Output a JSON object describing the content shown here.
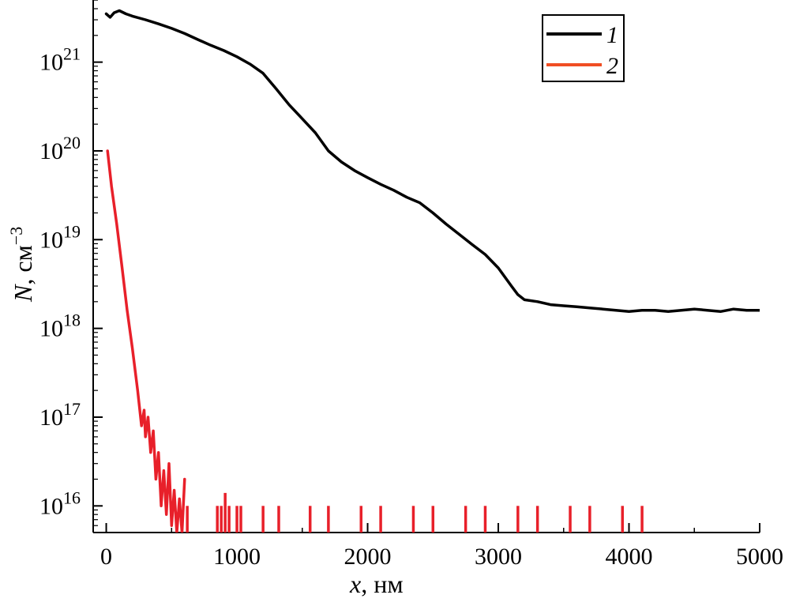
{
  "chart_data": {
    "type": "line",
    "xlabel_var": "x",
    "xlabel_unit": ", нм",
    "ylabel_var": "N",
    "ylabel_unit": ", см",
    "ylabel_exp": "−3",
    "xlim": [
      -100,
      5000
    ],
    "ylim_log10": [
      15.7,
      21.7
    ],
    "y_scale": "log",
    "grid": false,
    "legend_position": "top-right",
    "x_ticks": [
      0,
      1000,
      2000,
      3000,
      4000,
      5000
    ],
    "x_tick_labels": [
      "0",
      "1000",
      "2000",
      "3000",
      "4000",
      "5000"
    ],
    "y_ticks_exp": [
      16,
      17,
      18,
      19,
      20,
      21
    ],
    "y_tick_base": "10",
    "y_tick_exps": [
      "16",
      "17",
      "18",
      "19",
      "20",
      "21"
    ],
    "series": [
      {
        "name": "1",
        "color": "#000000",
        "x": [
          0,
          30,
          60,
          100,
          150,
          200,
          300,
          400,
          500,
          600,
          700,
          800,
          900,
          1000,
          1100,
          1200,
          1300,
          1400,
          1500,
          1600,
          1700,
          1800,
          1900,
          2000,
          2100,
          2200,
          2300,
          2400,
          2500,
          2600,
          2700,
          2800,
          2900,
          3000,
          3100,
          3150,
          3200,
          3300,
          3400,
          3500,
          3600,
          3700,
          3800,
          3900,
          4000,
          4100,
          4200,
          4300,
          4400,
          4500,
          4600,
          4700,
          4800,
          4900,
          5000
        ],
        "y": [
          3.5e+21,
          3.2e+21,
          3.6e+21,
          3.8e+21,
          3.5e+21,
          3.3e+21,
          3e+21,
          2.7e+21,
          2.4e+21,
          2.1e+21,
          1.8e+21,
          1.55e+21,
          1.35e+21,
          1.15e+21,
          9.5e+20,
          7.5e+20,
          5e+20,
          3.3e+20,
          2.3e+20,
          1.6e+20,
          1e+20,
          7.5e+19,
          6e+19,
          5e+19,
          4.2e+19,
          3.6e+19,
          3e+19,
          2.6e+19,
          2e+19,
          1.5e+19,
          1.15e+19,
          8.8e+18,
          6.8e+18,
          4.8e+18,
          3e+18,
          2.4e+18,
          2.1e+18,
          2e+18,
          1.85e+18,
          1.8e+18,
          1.75e+18,
          1.7e+18,
          1.65e+18,
          1.6e+18,
          1.55e+18,
          1.6e+18,
          1.6e+18,
          1.55e+18,
          1.6e+18,
          1.65e+18,
          1.6e+18,
          1.55e+18,
          1.65e+18,
          1.6e+18,
          1.6e+18
        ]
      },
      {
        "name": "2",
        "color": "#e8202a",
        "x": [
          10,
          40,
          80,
          120,
          160,
          200,
          240,
          270,
          290,
          300,
          320,
          340,
          360,
          380,
          400,
          420,
          440,
          460,
          480,
          500,
          520,
          540,
          560,
          580,
          600
        ],
        "y": [
          1e+20,
          4e+19,
          1.5e+19,
          5e+18,
          1.6e+18,
          6e+17,
          2e+17,
          8e+16,
          1.2e+17,
          6e+16,
          1e+17,
          4e+16,
          7e+16,
          2e+16,
          4e+16,
          1e+16,
          2.5e+16,
          8000000000000000.0,
          3e+16,
          6000000000000000.0,
          1.5e+16,
          5000000000000000.0,
          1.2e+16,
          5000000000000000.0,
          2e+16
        ]
      }
    ],
    "series2_spikes": [
      {
        "x": 620,
        "y": 1e+16
      },
      {
        "x": 850,
        "y": 1e+16
      },
      {
        "x": 880,
        "y": 1e+16
      },
      {
        "x": 910,
        "y": 1.4e+16
      },
      {
        "x": 940,
        "y": 1e+16
      },
      {
        "x": 1000,
        "y": 1e+16
      },
      {
        "x": 1030,
        "y": 1e+16
      },
      {
        "x": 1200,
        "y": 1e+16
      },
      {
        "x": 1320,
        "y": 1e+16
      },
      {
        "x": 1560,
        "y": 1e+16
      },
      {
        "x": 1700,
        "y": 1e+16
      },
      {
        "x": 1950,
        "y": 1e+16
      },
      {
        "x": 2100,
        "y": 1e+16
      },
      {
        "x": 2350,
        "y": 1e+16
      },
      {
        "x": 2500,
        "y": 1e+16
      },
      {
        "x": 2750,
        "y": 1e+16
      },
      {
        "x": 2900,
        "y": 1e+16
      },
      {
        "x": 3150,
        "y": 1e+16
      },
      {
        "x": 3300,
        "y": 1e+16
      },
      {
        "x": 3550,
        "y": 1e+16
      },
      {
        "x": 3700,
        "y": 1e+16
      },
      {
        "x": 3950,
        "y": 1e+16
      },
      {
        "x": 4100,
        "y": 1e+16
      }
    ]
  }
}
